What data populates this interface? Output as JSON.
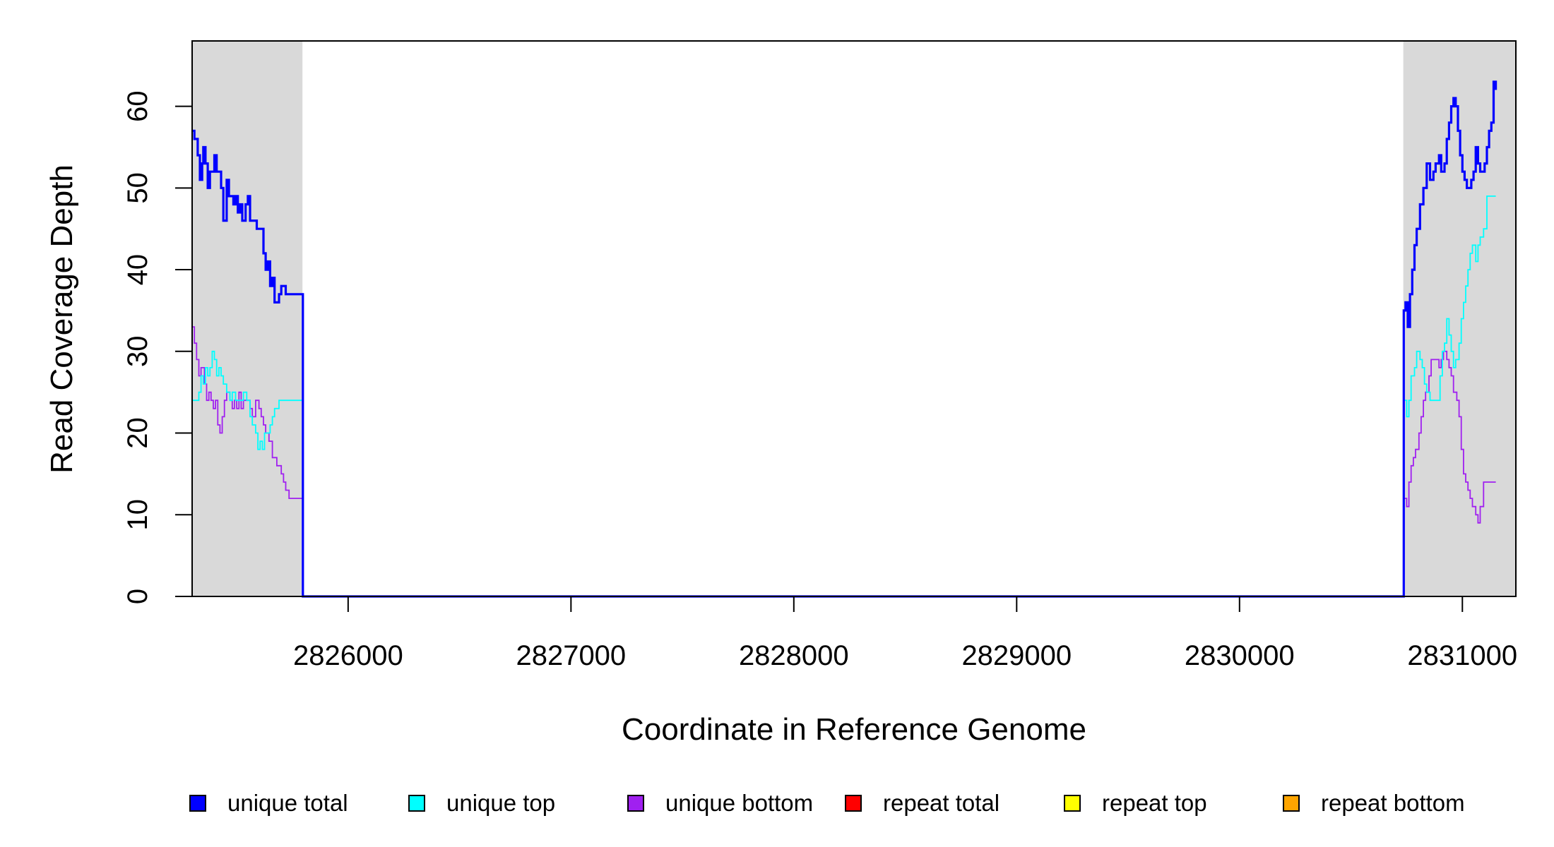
{
  "chart_data": {
    "type": "line",
    "xlabel": "Coordinate in Reference Genome",
    "ylabel": "Read Coverage Depth",
    "xlim": [
      2825300,
      2831240
    ],
    "ylim": [
      0,
      68
    ],
    "grid": false,
    "x_ticks": [
      2826000,
      2827000,
      2828000,
      2829000,
      2830000,
      2831000
    ],
    "y_ticks": [
      0,
      10,
      20,
      30,
      40,
      50,
      60
    ],
    "shaded_regions": [
      {
        "from": 2825300,
        "to": 2825795
      },
      {
        "from": 2830735,
        "to": 2831240
      }
    ],
    "legend_position": "bottom",
    "series": [
      {
        "name": "unique total",
        "color": "#0000ff",
        "points": [
          [
            2825300,
            57
          ],
          [
            2825310,
            56
          ],
          [
            2825325,
            54
          ],
          [
            2825335,
            51
          ],
          [
            2825345,
            53
          ],
          [
            2825350,
            55
          ],
          [
            2825360,
            53
          ],
          [
            2825370,
            50
          ],
          [
            2825380,
            52
          ],
          [
            2825400,
            54
          ],
          [
            2825410,
            52
          ],
          [
            2825430,
            50
          ],
          [
            2825440,
            46
          ],
          [
            2825455,
            51
          ],
          [
            2825465,
            49
          ],
          [
            2825485,
            48
          ],
          [
            2825495,
            49
          ],
          [
            2825505,
            47
          ],
          [
            2825515,
            48
          ],
          [
            2825525,
            46
          ],
          [
            2825540,
            48
          ],
          [
            2825550,
            49
          ],
          [
            2825560,
            46
          ],
          [
            2825580,
            46
          ],
          [
            2825590,
            45
          ],
          [
            2825610,
            45
          ],
          [
            2825620,
            42
          ],
          [
            2825630,
            40
          ],
          [
            2825640,
            41
          ],
          [
            2825650,
            38
          ],
          [
            2825660,
            39
          ],
          [
            2825670,
            36
          ],
          [
            2825690,
            37
          ],
          [
            2825700,
            38
          ],
          [
            2825720,
            37
          ],
          [
            2825735,
            37
          ],
          [
            2825795,
            37
          ],
          [
            2825797,
            0
          ],
          [
            2830735,
            0
          ],
          [
            2830737,
            35
          ],
          [
            2830745,
            36
          ],
          [
            2830755,
            33
          ],
          [
            2830765,
            37
          ],
          [
            2830775,
            40
          ],
          [
            2830785,
            43
          ],
          [
            2830795,
            45
          ],
          [
            2830810,
            48
          ],
          [
            2830825,
            50
          ],
          [
            2830840,
            53
          ],
          [
            2830855,
            51
          ],
          [
            2830870,
            52
          ],
          [
            2830880,
            53
          ],
          [
            2830895,
            54
          ],
          [
            2830905,
            52
          ],
          [
            2830920,
            53
          ],
          [
            2830930,
            56
          ],
          [
            2830940,
            58
          ],
          [
            2830950,
            60
          ],
          [
            2830960,
            61
          ],
          [
            2830970,
            60
          ],
          [
            2830980,
            57
          ],
          [
            2830990,
            54
          ],
          [
            2831000,
            52
          ],
          [
            2831010,
            51
          ],
          [
            2831020,
            50
          ],
          [
            2831040,
            51
          ],
          [
            2831050,
            52
          ],
          [
            2831060,
            55
          ],
          [
            2831070,
            53
          ],
          [
            2831080,
            52
          ],
          [
            2831100,
            53
          ],
          [
            2831110,
            55
          ],
          [
            2831120,
            57
          ],
          [
            2831130,
            58
          ],
          [
            2831140,
            63
          ],
          [
            2831150,
            62
          ]
        ]
      },
      {
        "name": "unique top",
        "color": "#00ffff",
        "points": [
          [
            2825300,
            24
          ],
          [
            2825320,
            24
          ],
          [
            2825330,
            25
          ],
          [
            2825340,
            27
          ],
          [
            2825350,
            26
          ],
          [
            2825360,
            28
          ],
          [
            2825370,
            27
          ],
          [
            2825380,
            28
          ],
          [
            2825390,
            30
          ],
          [
            2825400,
            29
          ],
          [
            2825410,
            27
          ],
          [
            2825420,
            28
          ],
          [
            2825430,
            27
          ],
          [
            2825440,
            26
          ],
          [
            2825455,
            25
          ],
          [
            2825470,
            24
          ],
          [
            2825480,
            25
          ],
          [
            2825495,
            24
          ],
          [
            2825510,
            24
          ],
          [
            2825520,
            24
          ],
          [
            2825530,
            25
          ],
          [
            2825545,
            24
          ],
          [
            2825560,
            22
          ],
          [
            2825570,
            21
          ],
          [
            2825585,
            20
          ],
          [
            2825595,
            18
          ],
          [
            2825605,
            19
          ],
          [
            2825615,
            18
          ],
          [
            2825625,
            20
          ],
          [
            2825640,
            20
          ],
          [
            2825650,
            21
          ],
          [
            2825660,
            22
          ],
          [
            2825670,
            23
          ],
          [
            2825690,
            24
          ],
          [
            2825795,
            24
          ],
          [
            2825797,
            0
          ],
          [
            2830735,
            0
          ],
          [
            2830737,
            24
          ],
          [
            2830750,
            22
          ],
          [
            2830760,
            24
          ],
          [
            2830770,
            27
          ],
          [
            2830785,
            28
          ],
          [
            2830795,
            30
          ],
          [
            2830810,
            29
          ],
          [
            2830820,
            28
          ],
          [
            2830830,
            26
          ],
          [
            2830840,
            25
          ],
          [
            2830855,
            24
          ],
          [
            2830890,
            24
          ],
          [
            2830900,
            27
          ],
          [
            2830910,
            30
          ],
          [
            2830920,
            31
          ],
          [
            2830930,
            34
          ],
          [
            2830940,
            32
          ],
          [
            2830950,
            30
          ],
          [
            2830960,
            28
          ],
          [
            2830970,
            29
          ],
          [
            2830985,
            31
          ],
          [
            2830995,
            34
          ],
          [
            2831005,
            36
          ],
          [
            2831015,
            38
          ],
          [
            2831025,
            40
          ],
          [
            2831035,
            42
          ],
          [
            2831045,
            43
          ],
          [
            2831060,
            41
          ],
          [
            2831070,
            43
          ],
          [
            2831080,
            44
          ],
          [
            2831095,
            45
          ],
          [
            2831110,
            49
          ],
          [
            2831150,
            49
          ]
        ]
      },
      {
        "name": "unique bottom",
        "color": "#a020f0",
        "points": [
          [
            2825300,
            33
          ],
          [
            2825310,
            31
          ],
          [
            2825320,
            29
          ],
          [
            2825330,
            27
          ],
          [
            2825340,
            28
          ],
          [
            2825355,
            26
          ],
          [
            2825365,
            24
          ],
          [
            2825375,
            25
          ],
          [
            2825385,
            24
          ],
          [
            2825395,
            23
          ],
          [
            2825405,
            24
          ],
          [
            2825415,
            21
          ],
          [
            2825425,
            20
          ],
          [
            2825435,
            22
          ],
          [
            2825445,
            24
          ],
          [
            2825455,
            25
          ],
          [
            2825470,
            24
          ],
          [
            2825480,
            23
          ],
          [
            2825490,
            24
          ],
          [
            2825500,
            23
          ],
          [
            2825510,
            25
          ],
          [
            2825520,
            23
          ],
          [
            2825530,
            24
          ],
          [
            2825545,
            24
          ],
          [
            2825560,
            23
          ],
          [
            2825570,
            22
          ],
          [
            2825585,
            24
          ],
          [
            2825600,
            23
          ],
          [
            2825610,
            22
          ],
          [
            2825620,
            21
          ],
          [
            2825630,
            20
          ],
          [
            2825645,
            19
          ],
          [
            2825660,
            17
          ],
          [
            2825680,
            16
          ],
          [
            2825700,
            15
          ],
          [
            2825710,
            14
          ],
          [
            2825720,
            13
          ],
          [
            2825735,
            12
          ],
          [
            2825795,
            12
          ],
          [
            2825797,
            0
          ],
          [
            2830735,
            0
          ],
          [
            2830737,
            12
          ],
          [
            2830750,
            11
          ],
          [
            2830760,
            14
          ],
          [
            2830770,
            16
          ],
          [
            2830780,
            17
          ],
          [
            2830790,
            18
          ],
          [
            2830805,
            20
          ],
          [
            2830815,
            22
          ],
          [
            2830825,
            24
          ],
          [
            2830835,
            25
          ],
          [
            2830850,
            27
          ],
          [
            2830860,
            29
          ],
          [
            2830880,
            29
          ],
          [
            2830895,
            28
          ],
          [
            2830905,
            29
          ],
          [
            2830915,
            30
          ],
          [
            2830930,
            29
          ],
          [
            2830940,
            28
          ],
          [
            2830950,
            27
          ],
          [
            2830960,
            25
          ],
          [
            2830975,
            24
          ],
          [
            2830985,
            22
          ],
          [
            2830995,
            18
          ],
          [
            2831005,
            15
          ],
          [
            2831015,
            14
          ],
          [
            2831025,
            13
          ],
          [
            2831035,
            12
          ],
          [
            2831045,
            11
          ],
          [
            2831060,
            10
          ],
          [
            2831070,
            9
          ],
          [
            2831080,
            11
          ],
          [
            2831095,
            14
          ],
          [
            2831150,
            14
          ]
        ]
      },
      {
        "name": "repeat total",
        "color": "#ff0000",
        "points": [
          [
            2825300,
            0
          ],
          [
            2831240,
            0
          ]
        ]
      },
      {
        "name": "repeat top",
        "color": "#ffff00",
        "points": [
          [
            2825300,
            0
          ],
          [
            2831240,
            0
          ]
        ]
      },
      {
        "name": "repeat bottom",
        "color": "#ffa500",
        "points": [
          [
            2825300,
            0
          ],
          [
            2831240,
            0
          ]
        ]
      }
    ]
  }
}
